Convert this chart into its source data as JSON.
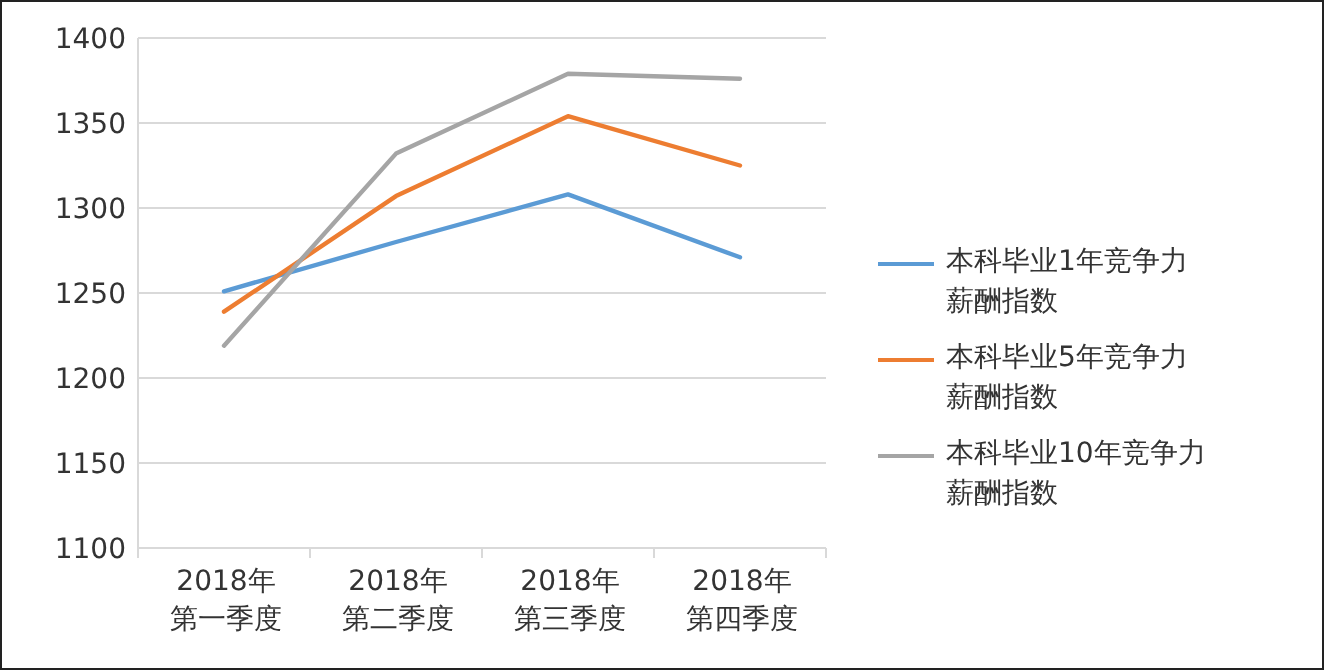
{
  "chart_data": {
    "type": "line",
    "categories": [
      "2018年第一季度",
      "2018年第二季度",
      "2018年第三季度",
      "2018年第四季度"
    ],
    "series": [
      {
        "name": "本科毕业1年竞争力薪酬指数",
        "color": "#5b9bd5",
        "values": [
          1251,
          1280,
          1308,
          1271
        ]
      },
      {
        "name": "本科毕业5年竞争力薪酬指数",
        "color": "#ed7d31",
        "values": [
          1239,
          1307,
          1354,
          1325
        ]
      },
      {
        "name": "本科毕业10年竞争力薪酬指数",
        "color": "#a5a5a5",
        "values": [
          1219,
          1332,
          1379,
          1376
        ]
      }
    ],
    "ylim": [
      1100,
      1400
    ],
    "yticks": [
      1100,
      1150,
      1200,
      1250,
      1300,
      1350,
      1400
    ],
    "grid": "y",
    "legend": "right",
    "marker": "none",
    "line_style": "solid"
  }
}
